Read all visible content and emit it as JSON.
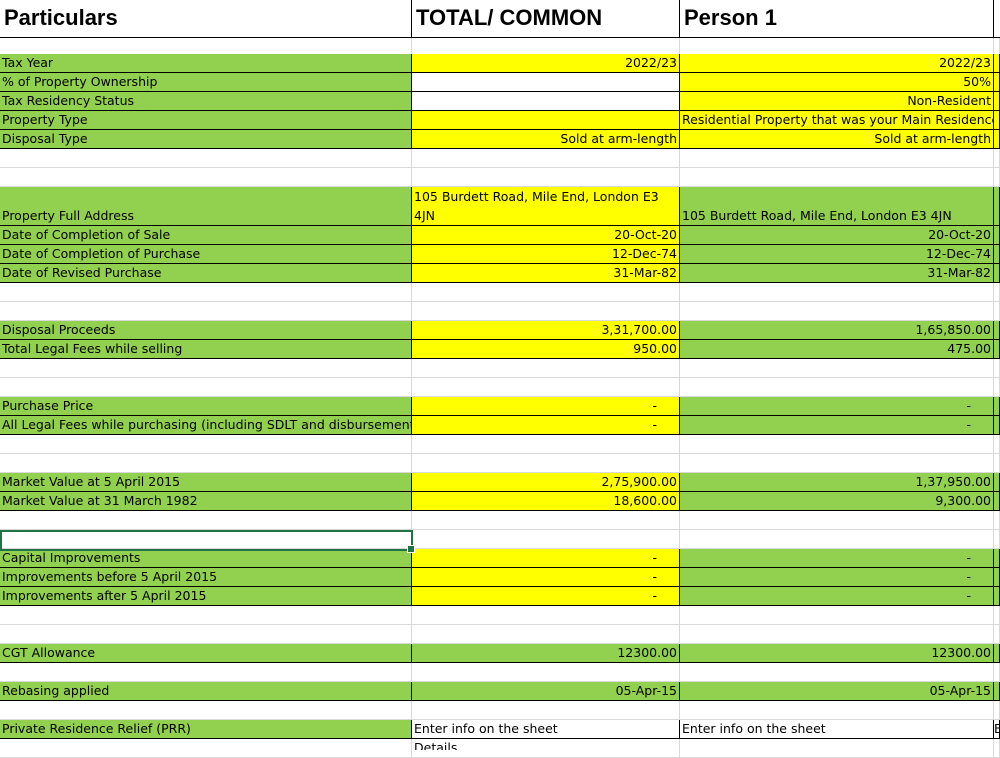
{
  "colors": {
    "green": "#92d050",
    "yellow": "#ffff00",
    "white": "#ffffff",
    "grid": "#d9d9d9",
    "border": "#000000",
    "selection": "#217346"
  },
  "headers": {
    "particulars": "Particulars",
    "total_common": "TOTAL/ COMMON",
    "person1": "Person 1"
  },
  "rows": [
    {
      "label": "Tax Year",
      "total": "2022/23",
      "person1": "2022/23",
      "total_fill": "yellow",
      "p1_fill": "yellow"
    },
    {
      "label": "% of Property Ownership",
      "total": "",
      "person1": "50%",
      "total_fill": "white",
      "p1_fill": "yellow"
    },
    {
      "label": "Tax Residency Status",
      "total": "",
      "person1": "Non-Resident",
      "total_fill": "white",
      "p1_fill": "yellow"
    },
    {
      "label": "Property Type",
      "total": "",
      "person1": "Residential Property that was your Main Residence",
      "total_fill": "yellow",
      "p1_fill": "yellow"
    },
    {
      "label": "Disposal Type",
      "total": "Sold at arm-length",
      "person1": "Sold at arm-length",
      "total_fill": "yellow",
      "p1_fill": "yellow"
    },
    {
      "label": "Property Full Address",
      "total": "105 Burdett Road, Mile End, London E3 4JN",
      "person1": "105 Burdett Road, Mile End, London E3 4JN",
      "total_fill": "yellow",
      "p1_fill": "green"
    },
    {
      "label": "Date of Completion of Sale",
      "total": "20-Oct-20",
      "person1": "20-Oct-20",
      "total_fill": "yellow",
      "p1_fill": "green"
    },
    {
      "label": "Date of Completion of Purchase",
      "total": "12-Dec-74",
      "person1": "12-Dec-74",
      "total_fill": "yellow",
      "p1_fill": "green"
    },
    {
      "label": "Date of Revised Purchase",
      "total": "31-Mar-82",
      "person1": "31-Mar-82",
      "total_fill": "yellow",
      "p1_fill": "green"
    },
    {
      "label": "Disposal Proceeds",
      "total": "3,31,700.00",
      "person1": "1,65,850.00",
      "total_fill": "yellow",
      "p1_fill": "green"
    },
    {
      "label": "Total Legal Fees while selling",
      "total": "950.00",
      "person1": "475.00",
      "total_fill": "yellow",
      "p1_fill": "green"
    },
    {
      "label": "Purchase Price",
      "total": "-",
      "person1": "-",
      "total_fill": "yellow",
      "p1_fill": "green"
    },
    {
      "label": "All Legal Fees while purchasing (including SDLT and disbursements)",
      "total": "-",
      "person1": "-",
      "total_fill": "yellow",
      "p1_fill": "green"
    },
    {
      "label": "Market Value at 5 April 2015",
      "total": "2,75,900.00",
      "person1": "1,37,950.00",
      "total_fill": "yellow",
      "p1_fill": "green"
    },
    {
      "label": "Market Value at 31 March 1982",
      "total": "18,600.00",
      "person1": "9,300.00",
      "total_fill": "yellow",
      "p1_fill": "green"
    },
    {
      "label": "Capital Improvements",
      "total": "-",
      "person1": "-",
      "total_fill": "yellow",
      "p1_fill": "green"
    },
    {
      "label": "Improvements before 5 April 2015",
      "total": "-",
      "person1": "-",
      "total_fill": "yellow",
      "p1_fill": "green"
    },
    {
      "label": "Improvements after 5 April 2015",
      "total": "-",
      "person1": "-",
      "total_fill": "yellow",
      "p1_fill": "green"
    },
    {
      "label": "CGT Allowance",
      "total": "12300.00",
      "person1": "12300.00",
      "total_fill": "green",
      "p1_fill": "green"
    },
    {
      "label": "Rebasing applied",
      "total": "05-Apr-15",
      "person1": "05-Apr-15",
      "total_fill": "green",
      "p1_fill": "green"
    },
    {
      "label": "Private Residence Relief (PRR)",
      "total": "Enter info on the sheet",
      "person1": "Enter info on the sheet",
      "total_fill": "white",
      "p1_fill": "white"
    }
  ],
  "overflow_text": {
    "address_total_line1": "105 Burdett Road, Mile End, London E3",
    "address_total_line2": "4JN",
    "prr_next_line": "Details",
    "next_col_char": "E"
  }
}
